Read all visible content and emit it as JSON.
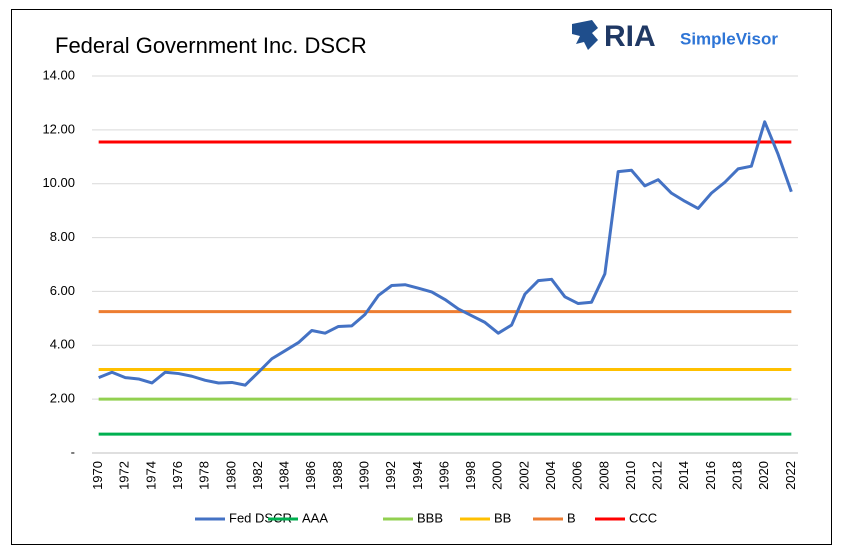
{
  "chart_data": {
    "type": "line",
    "title": "Federal Government Inc. DSCR",
    "logo_text": [
      "RIA",
      "SimpleVisor"
    ],
    "categories": [
      "1970",
      null,
      "1972",
      null,
      "1974",
      null,
      "1976",
      null,
      "1978",
      null,
      "1980",
      null,
      "1982",
      null,
      "1984",
      null,
      "1986",
      null,
      "1988",
      null,
      "1990",
      null,
      "1992",
      null,
      "1994",
      null,
      "1996",
      null,
      "1998",
      null,
      "2000",
      null,
      "2002",
      null,
      "2004",
      null,
      "2006",
      null,
      "2008",
      null,
      "2010",
      null,
      "2012",
      null,
      "2014",
      null,
      "2016",
      null,
      "2018",
      null,
      "2020",
      null,
      "2022"
    ],
    "series": [
      {
        "name": "Fed DSCR",
        "color": "#4472c4",
        "values": [
          2.8,
          3.0,
          2.8,
          2.75,
          2.6,
          3.0,
          2.95,
          2.85,
          2.7,
          2.6,
          2.62,
          2.52,
          3.0,
          3.5,
          3.8,
          4.1,
          4.55,
          4.45,
          4.7,
          4.72,
          5.15,
          5.85,
          6.22,
          6.25,
          6.12,
          5.98,
          5.7,
          5.35,
          5.1,
          4.85,
          4.45,
          4.75,
          5.9,
          6.4,
          6.45,
          5.8,
          5.55,
          5.6,
          6.65,
          10.45,
          10.5,
          9.92,
          10.15,
          9.65,
          9.35,
          9.08,
          9.65,
          10.05,
          10.55,
          10.65,
          12.3,
          11.1,
          9.7
        ]
      },
      {
        "name": "AAA",
        "color": "#00b050",
        "values": [
          0.7,
          0.7,
          0.7,
          0.7,
          0.7,
          0.7,
          0.7,
          0.7,
          0.7,
          0.7,
          0.7,
          0.7,
          0.7,
          0.7,
          0.7,
          0.7,
          0.7,
          0.7,
          0.7,
          0.7,
          0.7,
          0.7,
          0.7,
          0.7,
          0.7,
          0.7,
          0.7,
          0.7,
          0.7,
          0.7,
          0.7,
          0.7,
          0.7,
          0.7,
          0.7,
          0.7,
          0.7,
          0.7,
          0.7,
          0.7,
          0.7,
          0.7,
          0.7,
          0.7,
          0.7,
          0.7,
          0.7,
          0.7,
          0.7,
          0.7,
          0.7,
          0.7,
          0.7
        ]
      },
      {
        "name": "BBB",
        "color": "#92d050",
        "values": [
          2.0,
          2.0,
          2.0,
          2.0,
          2.0,
          2.0,
          2.0,
          2.0,
          2.0,
          2.0,
          2.0,
          2.0,
          2.0,
          2.0,
          2.0,
          2.0,
          2.0,
          2.0,
          2.0,
          2.0,
          2.0,
          2.0,
          2.0,
          2.0,
          2.0,
          2.0,
          2.0,
          2.0,
          2.0,
          2.0,
          2.0,
          2.0,
          2.0,
          2.0,
          2.0,
          2.0,
          2.0,
          2.0,
          2.0,
          2.0,
          2.0,
          2.0,
          2.0,
          2.0,
          2.0,
          2.0,
          2.0,
          2.0,
          2.0,
          2.0,
          2.0,
          2.0,
          2.0
        ]
      },
      {
        "name": "BB",
        "color": "#ffc000",
        "values": [
          3.1,
          3.1,
          3.1,
          3.1,
          3.1,
          3.1,
          3.1,
          3.1,
          3.1,
          3.1,
          3.1,
          3.1,
          3.1,
          3.1,
          3.1,
          3.1,
          3.1,
          3.1,
          3.1,
          3.1,
          3.1,
          3.1,
          3.1,
          3.1,
          3.1,
          3.1,
          3.1,
          3.1,
          3.1,
          3.1,
          3.1,
          3.1,
          3.1,
          3.1,
          3.1,
          3.1,
          3.1,
          3.1,
          3.1,
          3.1,
          3.1,
          3.1,
          3.1,
          3.1,
          3.1,
          3.1,
          3.1,
          3.1,
          3.1,
          3.1,
          3.1,
          3.1,
          3.1
        ]
      },
      {
        "name": "B",
        "color": "#ed7d31",
        "values": [
          5.25,
          5.25,
          5.25,
          5.25,
          5.25,
          5.25,
          5.25,
          5.25,
          5.25,
          5.25,
          5.25,
          5.25,
          5.25,
          5.25,
          5.25,
          5.25,
          5.25,
          5.25,
          5.25,
          5.25,
          5.25,
          5.25,
          5.25,
          5.25,
          5.25,
          5.25,
          5.25,
          5.25,
          5.25,
          5.25,
          5.25,
          5.25,
          5.25,
          5.25,
          5.25,
          5.25,
          5.25,
          5.25,
          5.25,
          5.25,
          5.25,
          5.25,
          5.25,
          5.25,
          5.25,
          5.25,
          5.25,
          5.25,
          5.25,
          5.25,
          5.25,
          5.25,
          5.25
        ]
      },
      {
        "name": "CCC",
        "color": "#ff0000",
        "values": [
          11.55,
          11.55,
          11.55,
          11.55,
          11.55,
          11.55,
          11.55,
          11.55,
          11.55,
          11.55,
          11.55,
          11.55,
          11.55,
          11.55,
          11.55,
          11.55,
          11.55,
          11.55,
          11.55,
          11.55,
          11.55,
          11.55,
          11.55,
          11.55,
          11.55,
          11.55,
          11.55,
          11.55,
          11.55,
          11.55,
          11.55,
          11.55,
          11.55,
          11.55,
          11.55,
          11.55,
          11.55,
          11.55,
          11.55,
          11.55,
          11.55,
          11.55,
          11.55,
          11.55,
          11.55,
          11.55,
          11.55,
          11.55,
          11.55,
          11.55,
          11.55,
          11.55,
          11.55
        ]
      }
    ],
    "ylim": [
      0,
      14
    ],
    "yticks": [
      {
        "value": 0,
        "label": "-"
      },
      {
        "value": 2,
        "label": "2.00"
      },
      {
        "value": 4,
        "label": "4.00"
      },
      {
        "value": 6,
        "label": "6.00"
      },
      {
        "value": 8,
        "label": "8.00"
      },
      {
        "value": 10,
        "label": "10.00"
      },
      {
        "value": 12,
        "label": "12.00"
      },
      {
        "value": 14,
        "label": "14.00"
      }
    ],
    "grid": true,
    "legend": "bottom"
  }
}
